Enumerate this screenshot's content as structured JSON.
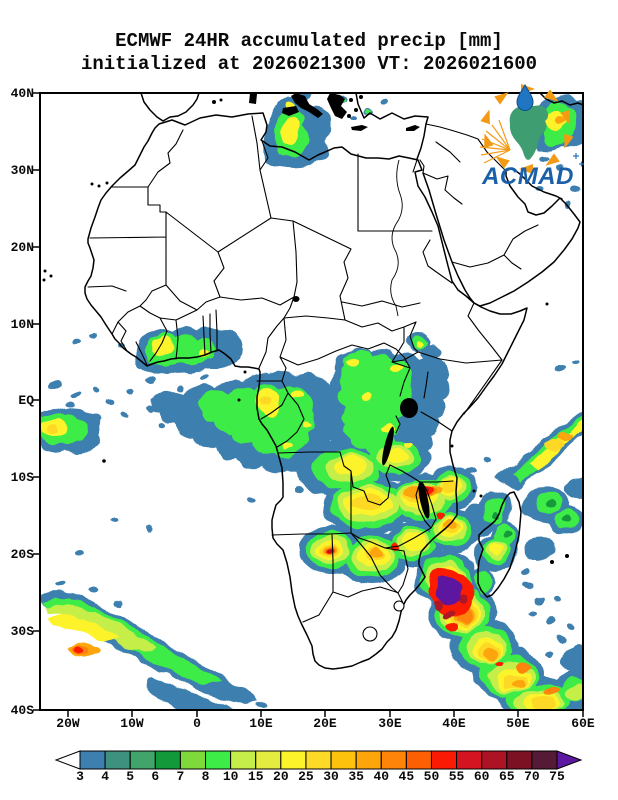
{
  "title": {
    "line1": "ECMWF 24HR accumulated precip [mm]",
    "line2": "initialized at 2026021300 VT: 2026021600"
  },
  "map": {
    "lat_labels": [
      "40N",
      "30N",
      "20N",
      "10N",
      "EQ",
      "10S",
      "20S",
      "30S",
      "40S"
    ],
    "lon_labels": [
      "20W",
      "10W",
      "0",
      "10E",
      "20E",
      "30E",
      "40E",
      "50E",
      "60E"
    ]
  },
  "colorbar": {
    "levels": [
      "3",
      "4",
      "5",
      "6",
      "7",
      "8",
      "10",
      "15",
      "20",
      "25",
      "30",
      "35",
      "40",
      "45",
      "50",
      "55",
      "60",
      "65",
      "70",
      "75"
    ],
    "colors": [
      "#3d7fae",
      "#3f917f",
      "#41a56b",
      "#12993a",
      "#7eda3a",
      "#3dec46",
      "#c6ee4a",
      "#e4ec3f",
      "#fdf32b",
      "#fdd928",
      "#fdc20b",
      "#fda50b",
      "#fd8408",
      "#fd5f05",
      "#fb1b05",
      "#d41420",
      "#ac1325",
      "#7d1124",
      "#541a36"
    ],
    "under_color": "#ffffff",
    "over_color": "#5c18a0",
    "units": "mm"
  },
  "logo": {
    "text": "ACMAD",
    "colors": {
      "africa": "#3f9e71",
      "arrows": "#f39a14",
      "text": "#1b5fa9",
      "drop": "#2176c4"
    }
  }
}
